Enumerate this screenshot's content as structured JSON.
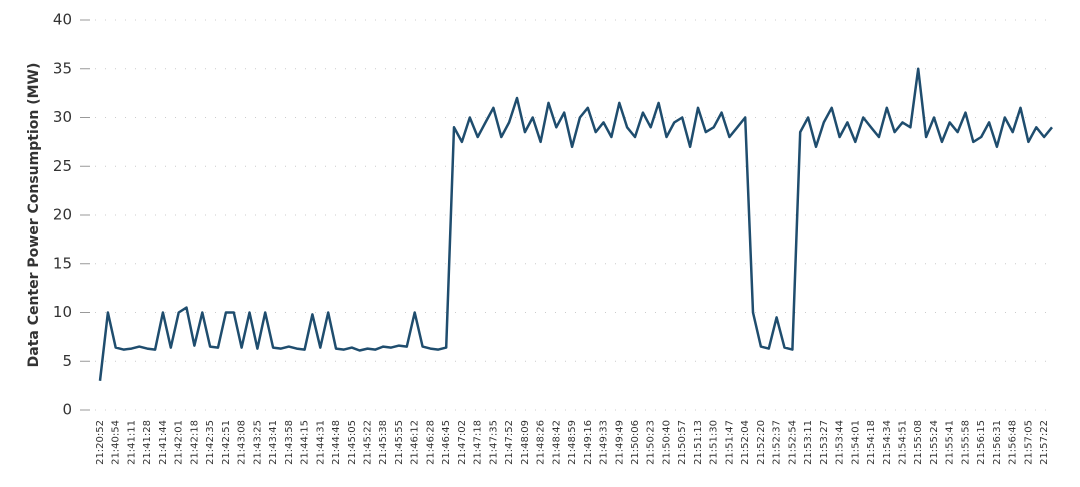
{
  "chart_data": {
    "type": "line",
    "y_label": "Data Center Power Consumption (MW)",
    "categories": [
      "21:20:52",
      null,
      "21:40:54",
      null,
      "21:41:11",
      null,
      "21:41:28",
      null,
      "21:41:44",
      null,
      "21:42:01",
      null,
      "21:42:18",
      null,
      "21:42:35",
      null,
      "21:42:51",
      null,
      "21:43:08",
      null,
      "21:43:25",
      null,
      "21:43:41",
      null,
      "21:43:58",
      null,
      "21:44:15",
      null,
      "21:44:31",
      null,
      "21:44:48",
      null,
      "21:45:05",
      null,
      "21:45:22",
      null,
      "21:45:38",
      null,
      "21:45:55",
      null,
      "21:46:12",
      null,
      "21:46:28",
      null,
      "21:46:45",
      null,
      "21:47:02",
      null,
      "21:47:18",
      null,
      "21:47:35",
      null,
      "21:47:52",
      null,
      "21:48:09",
      null,
      "21:48:26",
      null,
      "21:48:42",
      null,
      "21:48:59",
      null,
      "21:49:16",
      null,
      "21:49:33",
      null,
      "21:49:49",
      null,
      "21:50:06",
      null,
      "21:50:23",
      null,
      "21:50:40",
      null,
      "21:50:57",
      null,
      "21:51:13",
      null,
      "21:51:30",
      null,
      "21:51:47",
      null,
      "21:52:04",
      null,
      "21:52:20",
      null,
      "21:52:37",
      null,
      "21:52:54",
      null,
      "21:53:11",
      null,
      "21:53:27",
      null,
      "21:53:44",
      null,
      "21:54:01",
      null,
      "21:54:18",
      null,
      "21:54:34",
      null,
      "21:54:51",
      null,
      "21:55:08",
      null,
      "21:55:24",
      null,
      "21:55:41",
      null,
      "21:55:58",
      null,
      "21:56:15",
      null,
      "21:56:31",
      null,
      "21:56:48",
      null,
      "21:57:05",
      null,
      "21:57:22",
      null
    ],
    "values": [
      3,
      10,
      6.4,
      6.2,
      6.3,
      6.5,
      6.3,
      6.2,
      10,
      6.4,
      10,
      10.5,
      6.6,
      10,
      6.5,
      6.4,
      10,
      10,
      6.4,
      10,
      6.3,
      10,
      6.4,
      6.3,
      6.5,
      6.3,
      6.2,
      9.8,
      6.4,
      10,
      6.3,
      6.2,
      6.4,
      6.1,
      6.3,
      6.2,
      6.5,
      6.4,
      6.6,
      6.5,
      10,
      6.5,
      6.3,
      6.2,
      6.4,
      29,
      27.5,
      30,
      28,
      29.5,
      31,
      28,
      29.5,
      32,
      28.5,
      30,
      27.5,
      31.5,
      29,
      30.5,
      27,
      30,
      31,
      28.5,
      29.5,
      28,
      31.5,
      29,
      28,
      30.5,
      29,
      31.5,
      28,
      29.5,
      30,
      27,
      31,
      28.5,
      29,
      30.5,
      28,
      29,
      30,
      10,
      6.5,
      6.3,
      9.5,
      6.4,
      6.2,
      28.5,
      30,
      27,
      29.5,
      31,
      28,
      29.5,
      27.5,
      30,
      29,
      28,
      31,
      28.5,
      29.5,
      29,
      35,
      28,
      30,
      27.5,
      29.5,
      28.5,
      30.5,
      27.5,
      28,
      29.5,
      27,
      30,
      28.5,
      31,
      27.5,
      29,
      28,
      29
    ],
    "color": "#1f4d6e",
    "ylim": [
      0,
      40
    ],
    "yticks": [
      0,
      5,
      10,
      15,
      20,
      25,
      30,
      35,
      40
    ],
    "grid": true
  }
}
